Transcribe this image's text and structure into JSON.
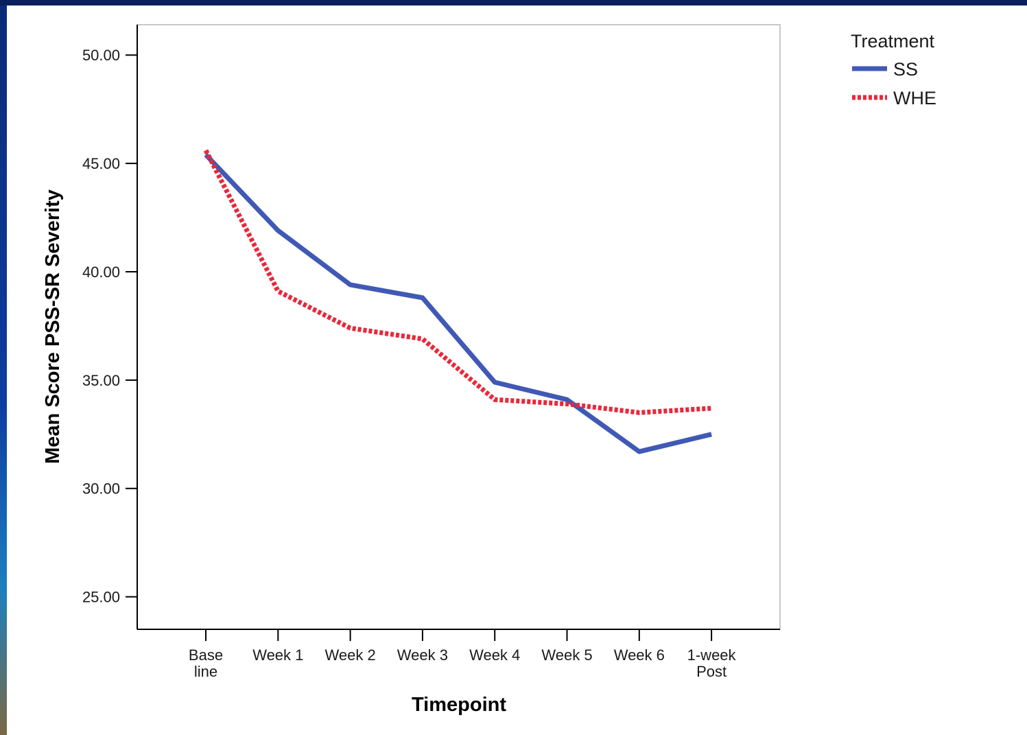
{
  "chart_data": {
    "type": "line",
    "title": "",
    "xlabel": "Timepoint",
    "ylabel": "Mean Score PSS-SR Severity",
    "categories": [
      [
        "Base",
        "line"
      ],
      [
        "Week 1"
      ],
      [
        "Week 2"
      ],
      [
        "Week 3"
      ],
      [
        "Week 4"
      ],
      [
        "Week 5"
      ],
      [
        "Week 6"
      ],
      [
        "1-week",
        "Post"
      ]
    ],
    "ylim": [
      23.5,
      51.4
    ],
    "yticks": [
      "25.00",
      "30.00",
      "35.00",
      "40.00",
      "45.00",
      "50.00"
    ],
    "grid": false,
    "legend": {
      "title": "Treatment",
      "position": "top-right"
    },
    "series": [
      {
        "name": "SS",
        "color": "#4059b5",
        "style": "solid",
        "values": [
          45.4,
          41.9,
          39.4,
          38.8,
          34.9,
          34.1,
          31.7,
          32.5
        ]
      },
      {
        "name": "WHE",
        "color": "#e8283a",
        "style": "dotted",
        "values": [
          45.6,
          39.1,
          37.4,
          36.9,
          34.1,
          33.9,
          33.5,
          33.7
        ]
      }
    ]
  }
}
